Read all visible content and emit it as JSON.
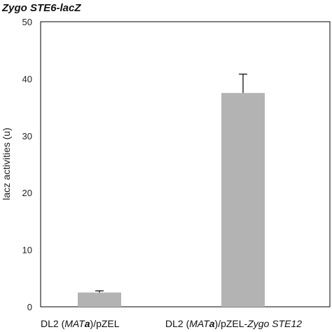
{
  "chart_data": {
    "type": "bar",
    "title_italic": "Zygo STE6-lacZ",
    "ylabel": "lacz activities (u)",
    "xlabel": "",
    "ylim": [
      0,
      50
    ],
    "yticks": [
      0,
      10,
      20,
      30,
      40,
      50
    ],
    "grid": false,
    "legend": "none",
    "bar_color": "#b3b3b3",
    "error_color": "#000000",
    "categories": [
      {
        "parts": [
          {
            "t": "DL2 (",
            "s": ""
          },
          {
            "t": "MAT",
            "s": "i"
          },
          {
            "t": "a",
            "s": "bi"
          },
          {
            "t": ")/pZEL",
            "s": ""
          }
        ]
      },
      {
        "parts": [
          {
            "t": "DL2 (",
            "s": ""
          },
          {
            "t": "MAT",
            "s": "i"
          },
          {
            "t": "a",
            "s": "bi"
          },
          {
            "t": ")/pZEL-",
            "s": ""
          },
          {
            "t": "Zygo STE12",
            "s": "i"
          }
        ]
      }
    ],
    "category_text": [
      "DL2 (MATa)/pZEL",
      "DL2 (MATa)/pZEL-Zygo STE12"
    ],
    "values": [
      2.5,
      37.5
    ],
    "errors": [
      0.3,
      3.3
    ]
  }
}
